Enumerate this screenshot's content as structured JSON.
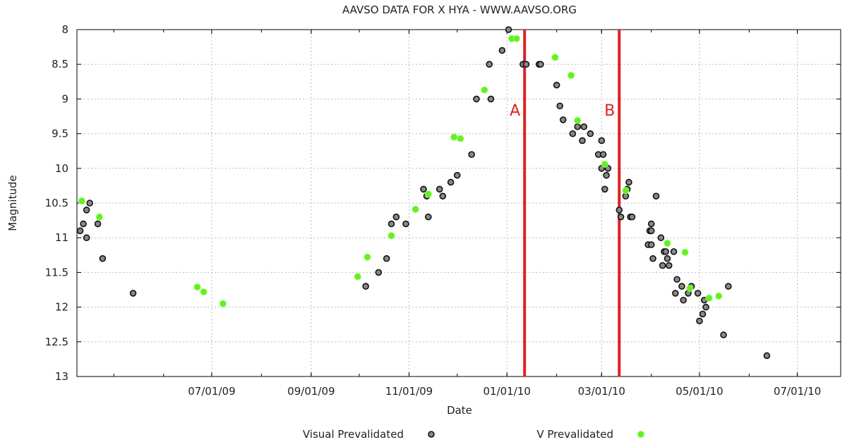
{
  "chart_data": {
    "type": "scatter",
    "title": "AAVSO DATA FOR X HYA - WWW.AAVSO.ORG",
    "xlabel": "Date",
    "ylabel": "Magnitude",
    "x_axis": {
      "type": "date",
      "range": [
        "2009-04-08",
        "2010-07-28"
      ],
      "tick_labels": [
        "07/01/09",
        "09/01/09",
        "11/01/09",
        "01/01/10",
        "03/01/10",
        "05/01/10",
        "07/01/10"
      ],
      "tick_dates": [
        "2009-07-01",
        "2009-09-01",
        "2009-11-01",
        "2010-01-01",
        "2010-03-01",
        "2010-05-01",
        "2010-07-01"
      ]
    },
    "y_axis": {
      "range": [
        8,
        13
      ],
      "inverted": true,
      "tick_labels": [
        "8",
        "8.5",
        "9",
        "9.5",
        "10",
        "10.5",
        "11",
        "11.5",
        "12",
        "12.5",
        "13"
      ],
      "tick_values": [
        8,
        8.5,
        9,
        9.5,
        10,
        10.5,
        11,
        11.5,
        12,
        12.5,
        13
      ]
    },
    "grid": true,
    "legend_position": "bottom",
    "series": [
      {
        "name": "Visual Prevalidated",
        "color": "#111111",
        "points": [
          [
            "2009-04-10",
            10.9
          ],
          [
            "2009-04-12",
            10.8
          ],
          [
            "2009-04-14",
            11.0
          ],
          [
            "2009-04-14",
            10.6
          ],
          [
            "2009-04-16",
            10.5
          ],
          [
            "2009-04-21",
            10.8
          ],
          [
            "2009-04-24",
            11.3
          ],
          [
            "2009-05-13",
            11.8
          ],
          [
            "2009-10-05",
            11.7
          ],
          [
            "2009-10-13",
            11.5
          ],
          [
            "2009-10-18",
            11.3
          ],
          [
            "2009-10-21",
            10.8
          ],
          [
            "2009-10-24",
            10.7
          ],
          [
            "2009-10-30",
            10.8
          ],
          [
            "2009-11-10",
            10.3
          ],
          [
            "2009-11-12",
            10.4
          ],
          [
            "2009-11-13",
            10.7
          ],
          [
            "2009-11-20",
            10.3
          ],
          [
            "2009-11-22",
            10.4
          ],
          [
            "2009-11-27",
            10.2
          ],
          [
            "2009-12-01",
            10.1
          ],
          [
            "2009-12-10",
            9.8
          ],
          [
            "2009-12-13",
            9.0
          ],
          [
            "2009-12-21",
            8.5
          ],
          [
            "2009-12-22",
            9.0
          ],
          [
            "2009-12-29",
            8.3
          ],
          [
            "2010-01-02",
            8.0
          ],
          [
            "2010-01-11",
            8.5
          ],
          [
            "2010-01-13",
            8.5
          ],
          [
            "2010-01-21",
            8.5
          ],
          [
            "2010-01-22",
            8.5
          ],
          [
            "2010-02-01",
            8.8
          ],
          [
            "2010-02-03",
            9.1
          ],
          [
            "2010-02-05",
            9.3
          ],
          [
            "2010-02-11",
            9.5
          ],
          [
            "2010-02-14",
            9.4
          ],
          [
            "2010-02-17",
            9.6
          ],
          [
            "2010-02-18",
            9.4
          ],
          [
            "2010-02-22",
            9.5
          ],
          [
            "2010-02-27",
            9.8
          ],
          [
            "2010-03-01",
            9.6
          ],
          [
            "2010-03-01",
            10.0
          ],
          [
            "2010-03-02",
            9.8
          ],
          [
            "2010-03-03",
            10.3
          ],
          [
            "2010-03-04",
            10.1
          ],
          [
            "2010-03-05",
            10.0
          ],
          [
            "2010-03-12",
            10.6
          ],
          [
            "2010-03-13",
            10.7
          ],
          [
            "2010-03-16",
            10.4
          ],
          [
            "2010-03-17",
            10.3
          ],
          [
            "2010-03-18",
            10.2
          ],
          [
            "2010-03-19",
            10.7
          ],
          [
            "2010-03-20",
            10.7
          ],
          [
            "2010-03-30",
            11.1
          ],
          [
            "2010-03-31",
            10.9
          ],
          [
            "2010-04-01",
            10.9
          ],
          [
            "2010-04-01",
            11.1
          ],
          [
            "2010-04-01",
            10.8
          ],
          [
            "2010-04-02",
            11.3
          ],
          [
            "2010-04-04",
            10.4
          ],
          [
            "2010-04-07",
            11.0
          ],
          [
            "2010-04-08",
            11.4
          ],
          [
            "2010-04-09",
            11.2
          ],
          [
            "2010-04-10",
            11.2
          ],
          [
            "2010-04-11",
            11.3
          ],
          [
            "2010-04-12",
            11.4
          ],
          [
            "2010-04-15",
            11.2
          ],
          [
            "2010-04-16",
            11.8
          ],
          [
            "2010-04-17",
            11.6
          ],
          [
            "2010-04-20",
            11.7
          ],
          [
            "2010-04-21",
            11.9
          ],
          [
            "2010-04-24",
            11.8
          ],
          [
            "2010-04-26",
            11.7
          ],
          [
            "2010-04-30",
            11.8
          ],
          [
            "2010-05-01",
            12.2
          ],
          [
            "2010-05-03",
            12.1
          ],
          [
            "2010-05-04",
            11.9
          ],
          [
            "2010-05-05",
            12.0
          ],
          [
            "2010-05-16",
            12.4
          ],
          [
            "2010-05-19",
            11.7
          ],
          [
            "2010-06-12",
            12.7
          ]
        ]
      },
      {
        "name": "V Prevalidated",
        "color": "#66ee22",
        "points": [
          [
            "2009-04-11",
            10.47
          ],
          [
            "2009-04-22",
            10.7
          ],
          [
            "2009-06-22",
            11.71
          ],
          [
            "2009-06-26",
            11.78
          ],
          [
            "2009-07-08",
            11.95
          ],
          [
            "2009-09-30",
            11.56
          ],
          [
            "2009-10-06",
            11.28
          ],
          [
            "2009-10-21",
            10.97
          ],
          [
            "2009-11-05",
            10.59
          ],
          [
            "2009-11-13",
            10.37
          ],
          [
            "2009-11-29",
            9.55
          ],
          [
            "2009-12-03",
            9.57
          ],
          [
            "2009-12-18",
            8.87
          ],
          [
            "2010-01-04",
            8.13
          ],
          [
            "2010-01-07",
            8.13
          ],
          [
            "2010-01-31",
            8.4
          ],
          [
            "2010-02-10",
            8.66
          ],
          [
            "2010-02-14",
            9.31
          ],
          [
            "2010-03-03",
            9.94
          ],
          [
            "2010-03-16",
            10.32
          ],
          [
            "2010-04-11",
            11.08
          ],
          [
            "2010-04-22",
            11.21
          ],
          [
            "2010-04-25",
            11.73
          ],
          [
            "2010-05-07",
            11.87
          ],
          [
            "2010-05-13",
            11.84
          ]
        ]
      }
    ],
    "annotations": [
      {
        "label": "A",
        "date": "2010-01-12",
        "color": "#dd2222"
      },
      {
        "label": "B",
        "date": "2010-03-12",
        "color": "#dd2222"
      }
    ]
  }
}
